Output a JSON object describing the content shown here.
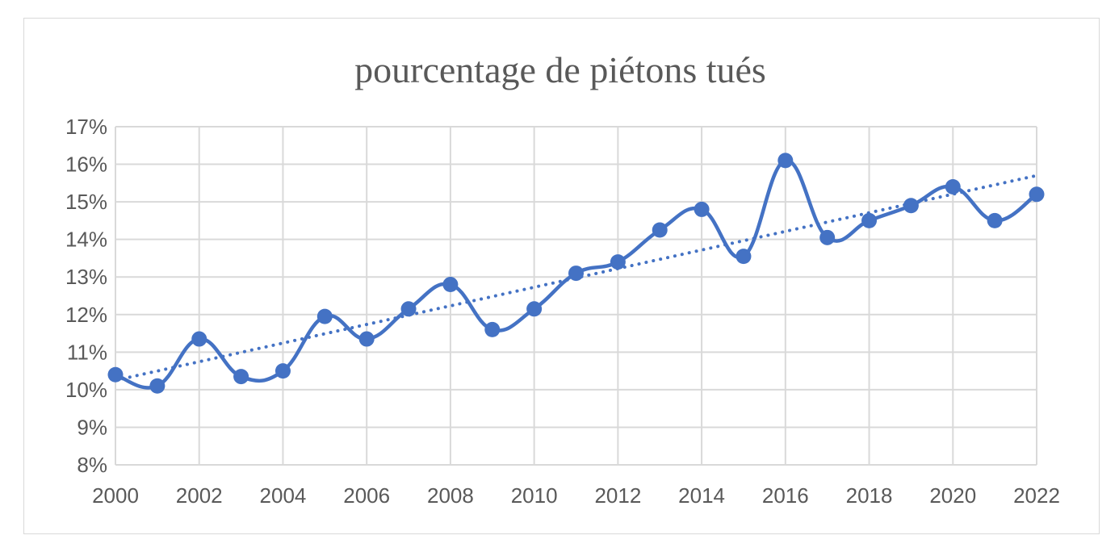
{
  "chart_data": {
    "type": "line",
    "title": "pourcentage de piétons tués",
    "xlabel": "",
    "ylabel": "",
    "x_ticks": [
      "2000",
      "2002",
      "2004",
      "2006",
      "2008",
      "2010",
      "2012",
      "2014",
      "2016",
      "2018",
      "2020",
      "2022"
    ],
    "y_ticks": [
      "8%",
      "9%",
      "10%",
      "11%",
      "12%",
      "13%",
      "14%",
      "15%",
      "16%",
      "17%"
    ],
    "xlim": [
      2000,
      2022
    ],
    "ylim": [
      8,
      17
    ],
    "grid": true,
    "series": [
      {
        "x": [
          2000,
          2001,
          2002,
          2003,
          2004,
          2005,
          2006,
          2007,
          2008,
          2009,
          2010,
          2011,
          2012,
          2013,
          2014,
          2015,
          2016,
          2017,
          2018,
          2019,
          2020,
          2021,
          2022
        ],
        "values": [
          10.4,
          10.1,
          11.35,
          10.35,
          10.5,
          11.95,
          11.35,
          12.15,
          12.8,
          11.6,
          12.15,
          13.1,
          13.4,
          14.25,
          14.8,
          13.55,
          16.1,
          14.05,
          14.5,
          14.9,
          15.4,
          14.5,
          15.2
        ]
      }
    ],
    "trendline": {
      "type": "linear",
      "style": "dotted",
      "start": [
        2000,
        10.25
      ],
      "end": [
        2022,
        15.7
      ]
    },
    "colors": {
      "series": "#4472c4",
      "grid": "#d9d9d9",
      "text": "#595959"
    }
  }
}
